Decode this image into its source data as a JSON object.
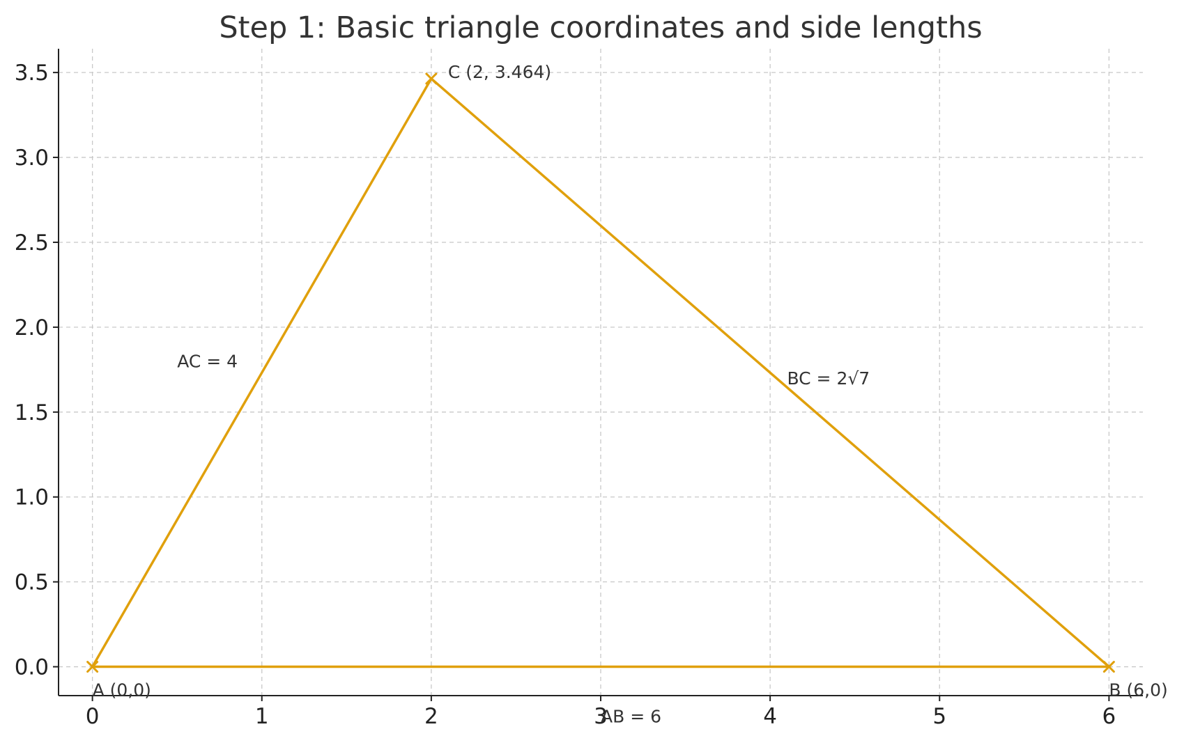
{
  "chart_data": {
    "type": "line",
    "title": "Step 1: Basic triangle coordinates and side lengths",
    "xlabel": "",
    "ylabel": "",
    "xlim": [
      -0.2,
      6.2
    ],
    "ylim": [
      -0.17,
      3.64
    ],
    "xticks": [
      0,
      1,
      2,
      3,
      4,
      5,
      6
    ],
    "xtick_labels": [
      "0",
      "1",
      "2",
      "3",
      "4",
      "5",
      "6"
    ],
    "yticks": [
      0.0,
      0.5,
      1.0,
      1.5,
      2.0,
      2.5,
      3.0,
      3.5
    ],
    "ytick_labels": [
      "0.0",
      "0.5",
      "1.0",
      "1.5",
      "2.0",
      "2.5",
      "3.0",
      "3.5"
    ],
    "grid": true,
    "color": "#e0a00c",
    "points": [
      {
        "name": "A",
        "x": 0,
        "y": 0,
        "label": "A (0,0)"
      },
      {
        "name": "B",
        "x": 6,
        "y": 0,
        "label": "B (6,0)"
      },
      {
        "name": "C",
        "x": 2,
        "y": 3.464,
        "label": "C (2, 3.464)"
      }
    ],
    "edges": [
      {
        "name": "AB",
        "from": "A",
        "to": "B"
      },
      {
        "name": "BC",
        "from": "B",
        "to": "C"
      },
      {
        "name": "AC",
        "from": "A",
        "to": "C"
      }
    ],
    "annotations": [
      {
        "name": "ab",
        "text": "AB = 6",
        "x": 3.0,
        "y": -0.29
      },
      {
        "name": "ac",
        "text": "AC = 4",
        "x": 0.5,
        "y": 1.8
      },
      {
        "name": "bc",
        "text": "BC = 2√7",
        "x": 4.1,
        "y": 1.7
      }
    ]
  }
}
